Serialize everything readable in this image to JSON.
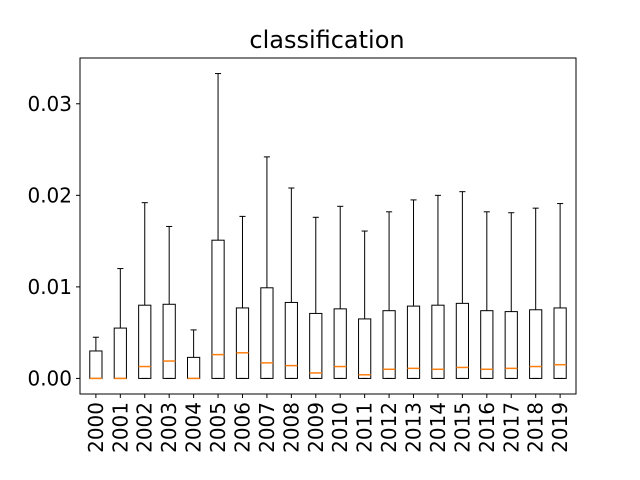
{
  "chart_data": {
    "type": "boxplot",
    "title": "classification",
    "xlabel": "",
    "ylabel": "",
    "ylim": [
      -0.0017,
      0.035
    ],
    "yticks": [
      0.0,
      0.01,
      0.02,
      0.03
    ],
    "ytick_labels": [
      "0.00",
      "0.01",
      "0.02",
      "0.03"
    ],
    "grid": false,
    "median_color": "#ff7f0e",
    "box_color": "#000000",
    "categories": [
      "2000",
      "2001",
      "2002",
      "2003",
      "2004",
      "2005",
      "2006",
      "2007",
      "2008",
      "2009",
      "2010",
      "2011",
      "2012",
      "2013",
      "2014",
      "2015",
      "2016",
      "2017",
      "2018",
      "2019"
    ],
    "boxes": [
      {
        "whislo": 0,
        "q1": 0,
        "med": 0.0,
        "q3": 0.003,
        "whishi": 0.0045
      },
      {
        "whislo": 0,
        "q1": 0,
        "med": 0.0,
        "q3": 0.0055,
        "whishi": 0.012
      },
      {
        "whislo": 0,
        "q1": 0,
        "med": 0.0013,
        "q3": 0.008,
        "whishi": 0.0192
      },
      {
        "whislo": 0,
        "q1": 0,
        "med": 0.0019,
        "q3": 0.0081,
        "whishi": 0.0166
      },
      {
        "whislo": 0,
        "q1": 0,
        "med": 0.0,
        "q3": 0.0023,
        "whishi": 0.0053
      },
      {
        "whislo": 0,
        "q1": 0,
        "med": 0.0026,
        "q3": 0.0151,
        "whishi": 0.0333
      },
      {
        "whislo": 0,
        "q1": 0,
        "med": 0.0028,
        "q3": 0.0077,
        "whishi": 0.0177
      },
      {
        "whislo": 0,
        "q1": 0,
        "med": 0.0017,
        "q3": 0.0099,
        "whishi": 0.0242
      },
      {
        "whislo": 0,
        "q1": 0,
        "med": 0.0014,
        "q3": 0.0083,
        "whishi": 0.0208
      },
      {
        "whislo": 0,
        "q1": 0,
        "med": 0.0006,
        "q3": 0.0071,
        "whishi": 0.0176
      },
      {
        "whislo": 0,
        "q1": 0,
        "med": 0.0013,
        "q3": 0.0076,
        "whishi": 0.0188
      },
      {
        "whislo": 0,
        "q1": 0,
        "med": 0.0004,
        "q3": 0.0065,
        "whishi": 0.0161
      },
      {
        "whislo": 0,
        "q1": 0,
        "med": 0.001,
        "q3": 0.0074,
        "whishi": 0.0182
      },
      {
        "whislo": 0,
        "q1": 0,
        "med": 0.0011,
        "q3": 0.0079,
        "whishi": 0.0195
      },
      {
        "whislo": 0,
        "q1": 0,
        "med": 0.001,
        "q3": 0.008,
        "whishi": 0.02
      },
      {
        "whislo": 0,
        "q1": 0,
        "med": 0.0012,
        "q3": 0.0082,
        "whishi": 0.0204
      },
      {
        "whislo": 0,
        "q1": 0,
        "med": 0.001,
        "q3": 0.0074,
        "whishi": 0.0182
      },
      {
        "whislo": 0,
        "q1": 0,
        "med": 0.0011,
        "q3": 0.0073,
        "whishi": 0.0181
      },
      {
        "whislo": 0,
        "q1": 0,
        "med": 0.0013,
        "q3": 0.0075,
        "whishi": 0.0186
      },
      {
        "whislo": 0,
        "q1": 0,
        "med": 0.0015,
        "q3": 0.0077,
        "whishi": 0.0191
      }
    ]
  }
}
